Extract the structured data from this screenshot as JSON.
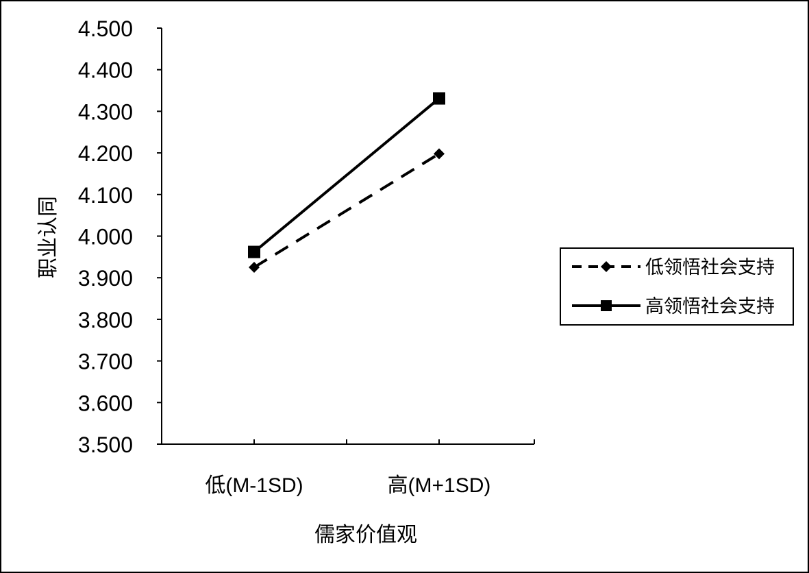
{
  "chart_data": {
    "type": "line",
    "categories": [
      "低(M-1SD)",
      "高(M+1SD)"
    ],
    "xlabel": "儒家价值观",
    "ylabel": "职业认同",
    "ylim": [
      3.5,
      4.5
    ],
    "yticks": [
      "4.500",
      "4.400",
      "4.300",
      "4.200",
      "4.100",
      "4.000",
      "3.900",
      "3.800",
      "3.700",
      "3.600",
      "3.500"
    ],
    "grid": false,
    "legend_position": "right",
    "series": [
      {
        "name": "低领悟社会支持",
        "values": [
          3.925,
          4.198
        ],
        "line_style": "dashed",
        "marker": "diamond",
        "color": "#000000"
      },
      {
        "name": "高领悟社会支持",
        "values": [
          3.962,
          4.331
        ],
        "line_style": "solid",
        "marker": "square",
        "color": "#000000"
      }
    ]
  }
}
